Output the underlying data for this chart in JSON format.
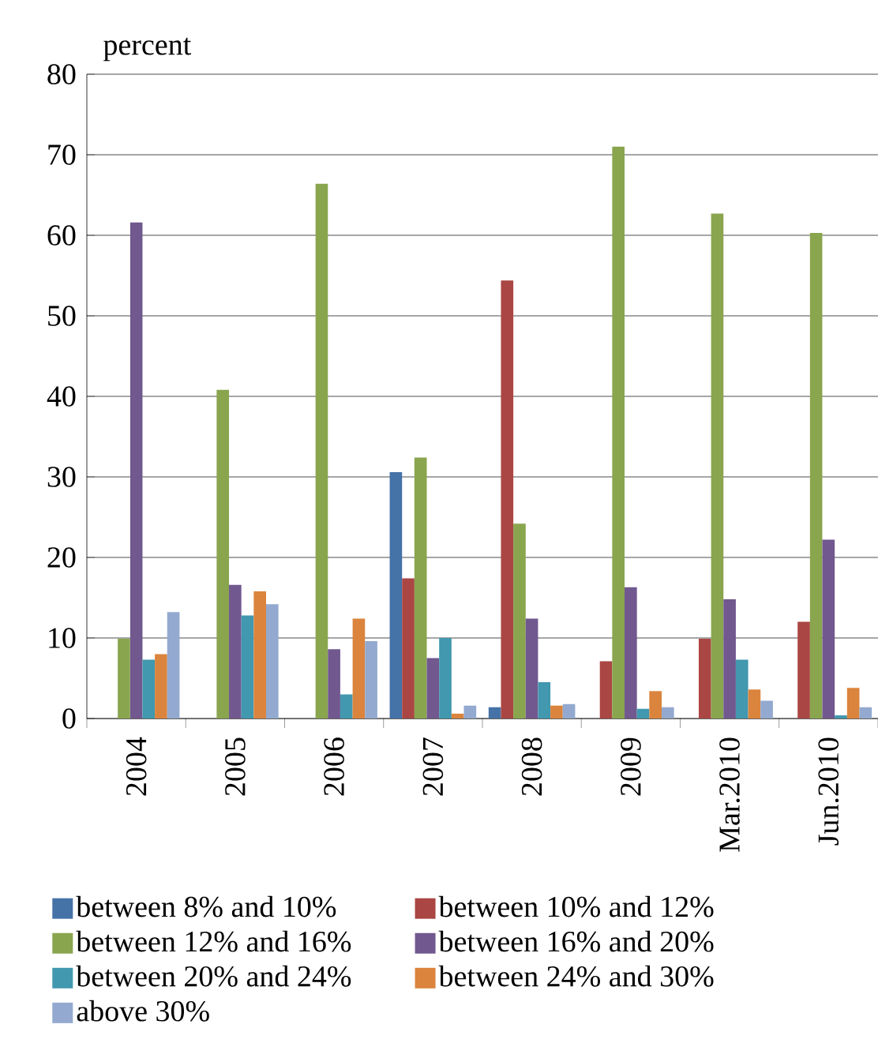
{
  "chart_data": {
    "type": "bar",
    "ylabel": "percent",
    "categories": [
      "2004",
      "2005",
      "2006",
      "2007",
      "2008",
      "2009",
      "Mar.2010",
      "Jun.2010"
    ],
    "series": [
      {
        "name": "between 8% and 10%",
        "color": "#4572a7",
        "values": [
          0,
          0,
          0,
          30.6,
          1.4,
          0,
          0,
          0
        ]
      },
      {
        "name": "between 10% and 12%",
        "color": "#aa4643",
        "values": [
          0,
          0,
          0,
          17.4,
          54.4,
          7.1,
          9.9,
          12.0
        ]
      },
      {
        "name": "between 12% and 16%",
        "color": "#89a54e",
        "values": [
          9.9,
          40.8,
          66.4,
          32.4,
          24.2,
          71.0,
          62.7,
          60.3
        ]
      },
      {
        "name": "between 16% and 20%",
        "color": "#71588f",
        "values": [
          61.6,
          16.6,
          8.6,
          7.5,
          12.4,
          16.3,
          14.8,
          22.2
        ]
      },
      {
        "name": "between 20% and 24%",
        "color": "#4198af",
        "values": [
          7.3,
          12.8,
          3.0,
          10.0,
          4.5,
          1.2,
          7.3,
          0.4
        ]
      },
      {
        "name": "between 24% and 30%",
        "color": "#db843d",
        "values": [
          8.0,
          15.8,
          12.4,
          0.6,
          1.6,
          3.4,
          3.6,
          3.8
        ]
      },
      {
        "name": "above 30%",
        "color": "#93a9cf",
        "values": [
          13.2,
          14.2,
          9.6,
          1.6,
          1.8,
          1.4,
          2.2,
          1.4
        ]
      }
    ],
    "ylim": [
      0,
      80
    ],
    "yticks": [
      0,
      10,
      20,
      30,
      40,
      50,
      60,
      70,
      80
    ],
    "grid": "y",
    "legend": "bottom"
  }
}
